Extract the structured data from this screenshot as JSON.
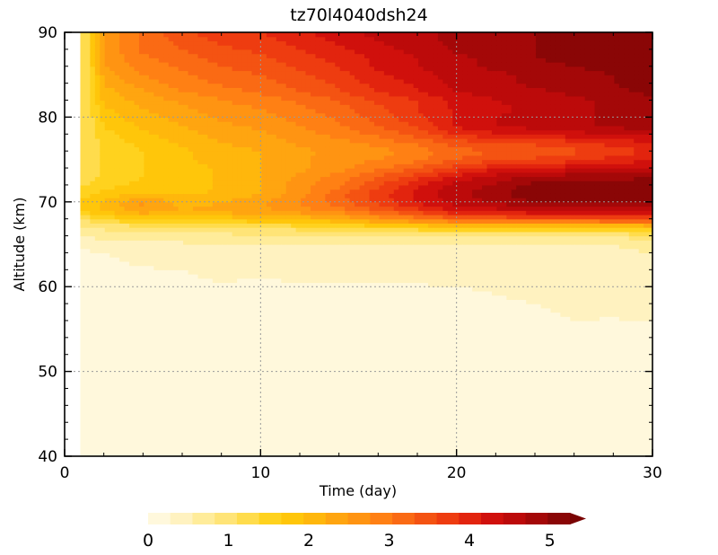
{
  "chart_data": {
    "type": "heatmap",
    "title": "tz70l4040dsh24",
    "xlabel": "Time (day)",
    "ylabel": "Altitude (km)",
    "xlim": [
      0,
      30
    ],
    "ylim": [
      40,
      90
    ],
    "xticks": [
      0,
      10,
      20,
      30
    ],
    "yticks": [
      40,
      50,
      60,
      70,
      80,
      90
    ],
    "grid": "dotted",
    "data_start_day": 0.8,
    "colorbar": {
      "ticks": [
        0,
        1,
        2,
        3,
        4,
        5
      ],
      "range": [
        0,
        5.25
      ],
      "step": 0.25,
      "extend": "max",
      "placement": "bottom",
      "colors": [
        "#fff8dc",
        "#fff2c0",
        "#ffec9a",
        "#ffe477",
        "#ffdc4c",
        "#ffd21e",
        "#ffc60a",
        "#ffb70c",
        "#ffa510",
        "#ff9412",
        "#ff8014",
        "#fa6a14",
        "#f45312",
        "#ee3c10",
        "#e2240e",
        "#d0100c",
        "#bc0a0a",
        "#a40808",
        "#8a0606"
      ],
      "arrow_color": "#7a0404"
    },
    "grid_rows": {
      "altitudes": [
        40,
        45,
        50,
        55,
        57,
        59,
        61,
        63,
        65,
        66,
        67,
        68,
        69,
        70,
        71,
        72,
        73,
        74,
        75,
        76,
        77,
        78,
        79,
        80,
        81,
        82,
        83,
        84,
        85,
        86,
        87,
        88,
        89,
        90
      ],
      "days": [
        1,
        2,
        4,
        6,
        8,
        10,
        12,
        14,
        16,
        18,
        20,
        22,
        24,
        26,
        28,
        30
      ],
      "values": [
        [
          0.05,
          0.05,
          0.05,
          0.05,
          0.05,
          0.05,
          0.05,
          0.05,
          0.05,
          0.05,
          0.05,
          0.05,
          0.05,
          0.05,
          0.05,
          0.05
        ],
        [
          0.05,
          0.05,
          0.05,
          0.05,
          0.05,
          0.05,
          0.05,
          0.05,
          0.05,
          0.05,
          0.05,
          0.05,
          0.05,
          0.05,
          0.05,
          0.05
        ],
        [
          0.05,
          0.05,
          0.05,
          0.05,
          0.05,
          0.05,
          0.05,
          0.05,
          0.05,
          0.05,
          0.05,
          0.05,
          0.05,
          0.05,
          0.05,
          0.05
        ],
        [
          0.05,
          0.05,
          0.05,
          0.05,
          0.05,
          0.05,
          0.05,
          0.05,
          0.05,
          0.05,
          0.05,
          0.1,
          0.15,
          0.2,
          0.15,
          0.15
        ],
        [
          0.05,
          0.05,
          0.05,
          0.05,
          0.05,
          0.05,
          0.05,
          0.05,
          0.05,
          0.05,
          0.1,
          0.15,
          0.2,
          0.3,
          0.3,
          0.35
        ],
        [
          0.05,
          0.05,
          0.05,
          0.05,
          0.05,
          0.05,
          0.05,
          0.1,
          0.1,
          0.15,
          0.2,
          0.25,
          0.3,
          0.3,
          0.3,
          0.35
        ],
        [
          0.1,
          0.1,
          0.15,
          0.2,
          0.3,
          0.25,
          0.3,
          0.3,
          0.3,
          0.3,
          0.3,
          0.3,
          0.3,
          0.3,
          0.3,
          0.35
        ],
        [
          0.15,
          0.2,
          0.3,
          0.3,
          0.35,
          0.3,
          0.4,
          0.4,
          0.35,
          0.4,
          0.35,
          0.35,
          0.35,
          0.4,
          0.4,
          0.4
        ],
        [
          0.3,
          0.3,
          0.4,
          0.45,
          0.45,
          0.45,
          0.5,
          0.5,
          0.45,
          0.5,
          0.5,
          0.5,
          0.5,
          0.5,
          0.5,
          0.6
        ],
        [
          0.5,
          0.6,
          0.6,
          0.65,
          0.65,
          0.7,
          0.75,
          0.8,
          0.8,
          0.8,
          0.8,
          0.8,
          0.8,
          0.8,
          0.8,
          0.85
        ],
        [
          0.7,
          0.8,
          0.9,
          1.0,
          1.0,
          1.0,
          1.1,
          1.2,
          1.3,
          1.4,
          1.5,
          1.5,
          1.5,
          1.5,
          1.5,
          1.6
        ],
        [
          1.0,
          1.3,
          1.5,
          1.5,
          1.6,
          1.7,
          1.8,
          2.0,
          2.3,
          2.6,
          2.9,
          3.0,
          3.1,
          3.1,
          3.2,
          3.3
        ],
        [
          1.5,
          1.8,
          2.2,
          2.0,
          2.1,
          2.2,
          2.4,
          2.6,
          3.0,
          3.4,
          3.8,
          3.9,
          4.0,
          4.0,
          4.0,
          4.1
        ],
        [
          1.6,
          1.8,
          2.3,
          1.9,
          2.0,
          2.2,
          2.5,
          2.9,
          3.3,
          3.8,
          4.1,
          4.3,
          4.5,
          4.5,
          4.5,
          4.6
        ],
        [
          1.4,
          1.6,
          1.8,
          1.7,
          1.8,
          2.0,
          2.4,
          2.9,
          3.4,
          3.8,
          4.2,
          4.4,
          4.7,
          4.7,
          4.6,
          4.7
        ],
        [
          1.2,
          1.4,
          1.6,
          1.6,
          1.8,
          2.0,
          2.4,
          2.7,
          3.2,
          3.7,
          4.1,
          4.3,
          4.6,
          4.6,
          4.6,
          4.7
        ],
        [
          1.1,
          1.3,
          1.5,
          1.6,
          1.8,
          2.0,
          2.3,
          2.6,
          3.0,
          3.4,
          3.8,
          4.1,
          4.3,
          4.4,
          4.4,
          4.5
        ],
        [
          1.0,
          1.3,
          1.5,
          1.6,
          1.8,
          2.0,
          2.2,
          2.4,
          2.7,
          3.0,
          3.4,
          3.7,
          3.8,
          3.9,
          4.0,
          4.1
        ],
        [
          1.0,
          1.3,
          1.5,
          1.7,
          1.9,
          2.0,
          2.2,
          2.4,
          2.5,
          2.7,
          3.0,
          3.2,
          3.3,
          3.4,
          3.6,
          3.7
        ],
        [
          1.0,
          1.3,
          1.5,
          1.7,
          1.9,
          2.0,
          2.2,
          2.3,
          2.4,
          2.6,
          2.9,
          3.0,
          3.1,
          3.2,
          3.4,
          3.5
        ],
        [
          1.0,
          1.3,
          1.6,
          1.8,
          2.0,
          2.1,
          2.3,
          2.4,
          2.6,
          2.8,
          3.1,
          3.3,
          3.3,
          3.4,
          3.6,
          3.7
        ],
        [
          1.0,
          1.4,
          1.7,
          1.9,
          2.1,
          2.2,
          2.4,
          2.6,
          2.8,
          3.1,
          3.5,
          3.7,
          3.8,
          3.9,
          4.0,
          4.1
        ],
        [
          1.0,
          1.5,
          1.8,
          2.0,
          2.2,
          2.3,
          2.5,
          2.7,
          3.0,
          3.3,
          3.8,
          4.0,
          4.1,
          4.2,
          4.3,
          4.4
        ],
        [
          1.0,
          1.6,
          1.9,
          2.1,
          2.3,
          2.4,
          2.6,
          2.8,
          3.1,
          3.4,
          3.8,
          4.0,
          4.1,
          4.2,
          4.3,
          4.5
        ],
        [
          1.0,
          1.7,
          2.0,
          2.2,
          2.4,
          2.5,
          2.7,
          2.9,
          3.2,
          3.5,
          3.8,
          3.9,
          4.1,
          4.2,
          4.3,
          4.4
        ],
        [
          1.0,
          1.8,
          2.1,
          2.3,
          2.5,
          2.6,
          2.8,
          3.0,
          3.3,
          3.5,
          3.8,
          4.0,
          4.1,
          4.2,
          4.3,
          4.4
        ],
        [
          1.0,
          1.9,
          2.2,
          2.5,
          2.6,
          2.8,
          3.0,
          3.2,
          3.5,
          3.7,
          4.0,
          4.1,
          4.2,
          4.3,
          4.4,
          4.6
        ],
        [
          1.0,
          2.0,
          2.4,
          2.6,
          2.8,
          2.9,
          3.1,
          3.3,
          3.6,
          3.8,
          4.1,
          4.2,
          4.3,
          4.4,
          4.5,
          4.7
        ],
        [
          1.0,
          2.1,
          2.5,
          2.7,
          2.9,
          3.0,
          3.2,
          3.4,
          3.7,
          3.9,
          4.1,
          4.2,
          4.3,
          4.4,
          4.5,
          4.7
        ],
        [
          1.0,
          2.2,
          2.6,
          2.8,
          3.0,
          3.1,
          3.3,
          3.5,
          3.8,
          4.0,
          4.2,
          4.3,
          4.4,
          4.5,
          4.6,
          4.8
        ],
        [
          1.0,
          2.3,
          2.7,
          2.9,
          3.1,
          3.2,
          3.4,
          3.6,
          3.8,
          4.0,
          4.2,
          4.3,
          4.5,
          4.6,
          4.7,
          4.9
        ],
        [
          1.0,
          2.3,
          2.8,
          3.0,
          3.2,
          3.3,
          3.5,
          3.7,
          3.9,
          4.1,
          4.3,
          4.4,
          4.5,
          4.6,
          4.7,
          4.9
        ],
        [
          1.0,
          2.3,
          2.8,
          3.1,
          3.3,
          3.4,
          3.6,
          3.8,
          4.0,
          4.2,
          4.3,
          4.4,
          4.5,
          4.6,
          4.7,
          4.9
        ],
        [
          1.0,
          2.3,
          2.8,
          3.2,
          3.4,
          3.5,
          3.7,
          3.9,
          4.1,
          4.2,
          4.3,
          4.4,
          4.5,
          4.6,
          4.7,
          4.9
        ]
      ]
    }
  }
}
